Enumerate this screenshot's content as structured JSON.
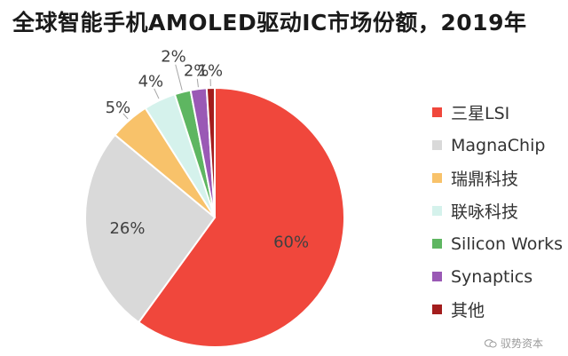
{
  "chart_data": {
    "type": "pie",
    "title": "全球智能手机AMOLED驱动IC市场份额，2019年",
    "slices": [
      {
        "name": "三星LSI",
        "value": 60,
        "label": "60%",
        "color": "#f0473c"
      },
      {
        "name": "MagnaChip",
        "value": 26,
        "label": "26%",
        "color": "#d9d9d9"
      },
      {
        "name": "瑞鼎科技",
        "value": 5,
        "label": "5%",
        "color": "#f8c26a"
      },
      {
        "name": "联咏科技",
        "value": 4,
        "label": "4%",
        "color": "#d5f2ec"
      },
      {
        "name": "Silicon Works",
        "value": 2,
        "label": "2%",
        "color": "#5eb661"
      },
      {
        "name": "Synaptics",
        "value": 2,
        "label": "2%",
        "color": "#9a59b5"
      },
      {
        "name": "其他",
        "value": 1,
        "label": "1%",
        "color": "#a31d1d"
      }
    ],
    "legend_position": "right"
  },
  "watermark": {
    "text": "驭势资本",
    "icon": "wechat-icon"
  }
}
